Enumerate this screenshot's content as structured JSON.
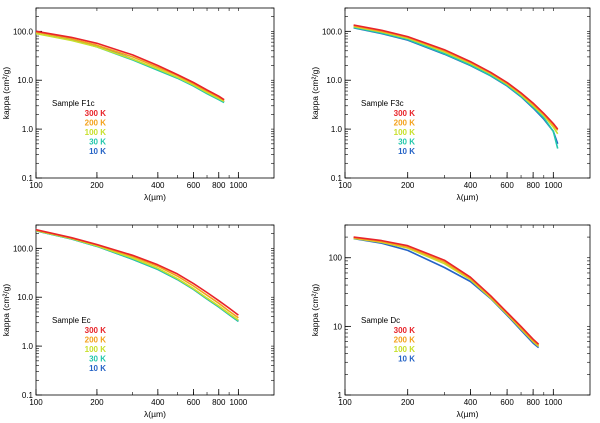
{
  "chart_data": [
    {
      "type": "line",
      "xlabel": "λ(µm)",
      "ylabel": "kappa (cm²/g)",
      "x_scale": "log",
      "y_scale": "log",
      "xlim": [
        100,
        1500
      ],
      "ylim": [
        0.1,
        300
      ],
      "xticks": [
        100,
        200,
        400,
        600,
        800,
        1000
      ],
      "xtick_labels": [
        "100",
        "200",
        "400",
        "600",
        "800",
        "1000"
      ],
      "yticks": [
        0.1,
        1,
        10,
        100
      ],
      "ytick_labels": [
        "0.1",
        "1.0",
        "10.0",
        "100.0"
      ],
      "legend_title": "Sample F1c",
      "legend_position": "bottom-left",
      "series": [
        {
          "name": "300 K",
          "color": "#e8242a",
          "x": [
            100,
            150,
            200,
            300,
            400,
            500,
            600,
            700,
            800,
            850
          ],
          "y": [
            100,
            75,
            57,
            33,
            20,
            13,
            9,
            6.3,
            4.7,
            4.0
          ]
        },
        {
          "name": "200 K",
          "color": "#f4a21c",
          "x": [
            100,
            150,
            200,
            300,
            400,
            500,
            600,
            700,
            800,
            850
          ],
          "y": [
            97,
            70,
            52,
            30,
            18.5,
            12.5,
            8.5,
            6.0,
            4.5,
            3.9
          ]
        },
        {
          "name": "100 K",
          "color": "#c8e02c",
          "x": [
            100,
            150,
            200,
            300,
            400,
            500,
            600,
            700,
            800,
            850
          ],
          "y": [
            90,
            65,
            48,
            27,
            17,
            11.5,
            8,
            5.6,
            4.2,
            3.7
          ]
        },
        {
          "name": "30 K",
          "color": "#22c7ab",
          "x": [
            100,
            150,
            200,
            300,
            400,
            500,
            600,
            700,
            800,
            850
          ],
          "y": [
            98,
            68,
            48,
            26,
            16,
            11,
            7.6,
            5.3,
            4.0,
            3.5
          ]
        },
        {
          "name": "10 K",
          "color": "#2563c6",
          "x": [
            100,
            150,
            200,
            300,
            400,
            500,
            600,
            700,
            800,
            850
          ],
          "y": [
            100,
            70,
            50,
            27,
            16.5,
            11.2,
            7.8,
            5.4,
            4.1,
            3.6
          ]
        }
      ]
    },
    {
      "type": "line",
      "xlabel": "λ(µm)",
      "ylabel": "kappa (cm²/g)",
      "x_scale": "log",
      "y_scale": "log",
      "xlim": [
        100,
        1500
      ],
      "ylim": [
        0.1,
        300
      ],
      "xticks": [
        100,
        200,
        400,
        600,
        800,
        1000
      ],
      "xtick_labels": [
        "100",
        "200",
        "400",
        "600",
        "800",
        "1000"
      ],
      "yticks": [
        0.1,
        1,
        10,
        100
      ],
      "ytick_labels": [
        "0.1",
        "1.0",
        "10.0",
        "100.0"
      ],
      "legend_title": "Sample F3c",
      "legend_position": "bottom-left",
      "series": [
        {
          "name": "300 K",
          "color": "#e8242a",
          "x": [
            110,
            150,
            200,
            300,
            400,
            500,
            600,
            700,
            800,
            900,
            1000,
            1050
          ],
          "y": [
            135,
            105,
            78,
            42,
            24,
            14.5,
            9.0,
            5.5,
            3.4,
            2.1,
            1.3,
            1.0
          ]
        },
        {
          "name": "200 K",
          "color": "#f4a21c",
          "x": [
            110,
            150,
            200,
            300,
            400,
            500,
            600,
            700,
            800,
            900,
            1000,
            1050
          ],
          "y": [
            130,
            100,
            75,
            40,
            23,
            14,
            8.6,
            5.3,
            3.2,
            2.0,
            1.2,
            0.95
          ]
        },
        {
          "name": "100 K",
          "color": "#c8e02c",
          "x": [
            110,
            150,
            200,
            300,
            400,
            500,
            600,
            700,
            800,
            900,
            1000,
            1050
          ],
          "y": [
            125,
            97,
            72,
            38,
            22,
            13.5,
            8.3,
            5.0,
            3.0,
            1.9,
            1.1,
            0.8
          ]
        },
        {
          "name": "30 K",
          "color": "#22c7ab",
          "x": [
            110,
            150,
            200,
            300,
            400,
            500,
            600,
            700,
            800,
            900,
            1000,
            1050
          ],
          "y": [
            120,
            92,
            68,
            35,
            20.5,
            12.5,
            7.8,
            4.7,
            2.8,
            1.7,
            0.9,
            0.4
          ]
        },
        {
          "name": "10 K",
          "color": "#2563c6",
          "x": [
            110,
            150,
            200,
            300,
            400,
            500,
            600,
            700,
            800,
            900,
            1000,
            1050
          ],
          "y": [
            118,
            90,
            66,
            34,
            20,
            12.3,
            7.6,
            4.6,
            2.7,
            1.6,
            0.9,
            0.5
          ]
        }
      ]
    },
    {
      "type": "line",
      "xlabel": "λ(µm)",
      "ylabel": "kappa (cm²/g)",
      "x_scale": "log",
      "y_scale": "log",
      "xlim": [
        100,
        1500
      ],
      "ylim": [
        0.1,
        300
      ],
      "xticks": [
        100,
        200,
        400,
        600,
        800,
        1000
      ],
      "xtick_labels": [
        "100",
        "200",
        "400",
        "600",
        "800",
        "1000"
      ],
      "yticks": [
        0.1,
        1,
        10,
        100
      ],
      "ytick_labels": [
        "0.1",
        "1.0",
        "10.0",
        "100.0"
      ],
      "legend_title": "Sample Ec",
      "legend_position": "bottom-left",
      "series": [
        {
          "name": "300 K",
          "color": "#e8242a",
          "x": [
            100,
            150,
            200,
            300,
            400,
            500,
            600,
            700,
            800,
            900,
            1000
          ],
          "y": [
            240,
            165,
            120,
            72,
            46,
            30,
            19,
            12.5,
            8.5,
            6.0,
            4.3
          ]
        },
        {
          "name": "200 K",
          "color": "#f4a21c",
          "x": [
            100,
            150,
            200,
            300,
            400,
            500,
            600,
            700,
            800,
            900,
            1000
          ],
          "y": [
            235,
            162,
            117,
            68,
            43,
            27,
            17,
            11,
            7.5,
            5.2,
            3.8
          ]
        },
        {
          "name": "100 K",
          "color": "#c8e02c",
          "x": [
            100,
            150,
            200,
            300,
            400,
            500,
            600,
            700,
            800,
            900,
            1000
          ],
          "y": [
            230,
            158,
            112,
            63,
            39,
            24,
            15,
            9.6,
            6.6,
            4.6,
            3.4
          ]
        },
        {
          "name": "30 K",
          "color": "#22c7ab",
          "x": [
            100,
            150,
            200,
            300,
            400,
            500,
            600,
            700,
            800,
            900,
            1000
          ],
          "y": [
            228,
            155,
            110,
            60,
            37,
            23,
            14.5,
            9.2,
            6.3,
            4.4,
            3.2
          ]
        },
        {
          "name": "10 K",
          "color": "#2563c6",
          "x": [
            100,
            150,
            200,
            300,
            400,
            500,
            600,
            700,
            800,
            900,
            1000
          ],
          "y": [
            228,
            155,
            110,
            60,
            37,
            23,
            14.5,
            9.2,
            6.3,
            4.4,
            3.2
          ]
        }
      ]
    },
    {
      "type": "line",
      "xlabel": "λ(µm)",
      "ylabel": "kappa (cm²/g)",
      "x_scale": "log",
      "y_scale": "log",
      "xlim": [
        100,
        1500
      ],
      "ylim": [
        1,
        300
      ],
      "xticks": [
        100,
        200,
        400,
        600,
        800,
        1000
      ],
      "xtick_labels": [
        "100",
        "200",
        "400",
        "600",
        "800",
        "1000"
      ],
      "yticks": [
        1,
        10,
        100
      ],
      "ytick_labels": [
        "1",
        "10",
        "100"
      ],
      "legend_title": "Sample Dc",
      "legend_position": "bottom-left",
      "series": [
        {
          "name": "300 K",
          "color": "#e8242a",
          "x": [
            110,
            150,
            200,
            300,
            400,
            500,
            600,
            700,
            800,
            850
          ],
          "y": [
            200,
            178,
            150,
            92,
            52,
            28,
            16,
            10,
            6.5,
            5.5
          ]
        },
        {
          "name": "200 K",
          "color": "#f4a21c",
          "x": [
            110,
            150,
            200,
            300,
            400,
            500,
            600,
            700,
            800,
            850
          ],
          "y": [
            195,
            172,
            143,
            87,
            50,
            27,
            15.5,
            9.5,
            6.2,
            5.3
          ]
        },
        {
          "name": "100 K",
          "color": "#c8e02c",
          "x": [
            110,
            150,
            200,
            300,
            400,
            500,
            600,
            700,
            800,
            850
          ],
          "y": [
            192,
            168,
            138,
            82,
            48,
            26,
            15,
            9.2,
            6.0,
            5.1
          ]
        },
        {
          "name": "10 K",
          "color": "#2563c6",
          "x": [
            110,
            150,
            200,
            300,
            400,
            500,
            600,
            700,
            800,
            850
          ],
          "y": [
            190,
            163,
            128,
            72,
            45,
            25.5,
            14.5,
            8.8,
            5.7,
            4.9
          ]
        }
      ]
    }
  ]
}
